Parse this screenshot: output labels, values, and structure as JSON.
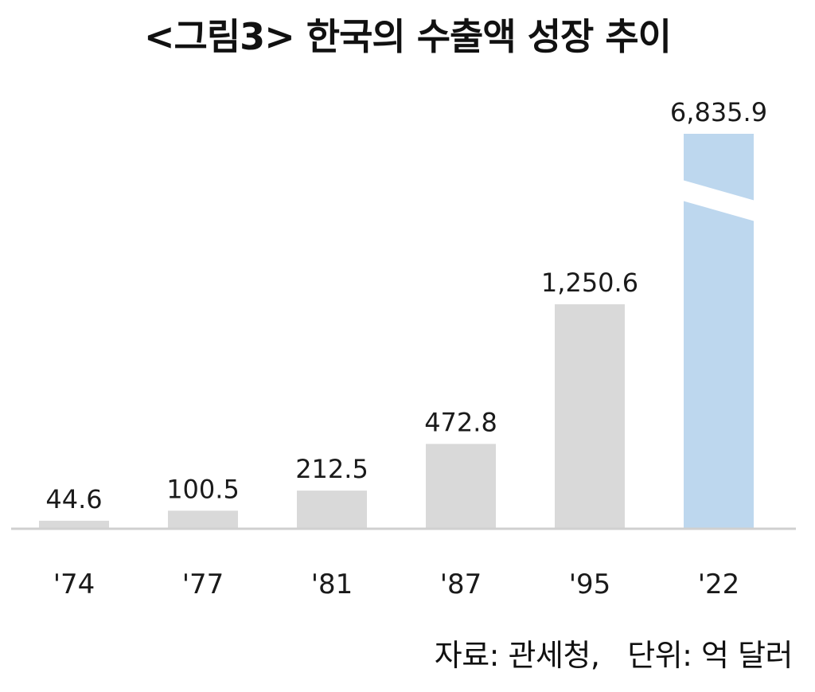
{
  "chart_data": {
    "type": "bar",
    "title": "<그림3> 한국의 수출액 성장 추이",
    "categories": [
      "'74",
      "'77",
      "'81",
      "'87",
      "'95",
      "'22"
    ],
    "values": [
      44.6,
      100.5,
      212.5,
      472.8,
      1250.6,
      6835.9
    ],
    "value_labels": [
      "44.6",
      "100.5",
      "212.5",
      "472.8",
      "1,250.6",
      "6,835.9"
    ],
    "axis_break": {
      "category": "'22",
      "note": "bar truncated with break mark"
    },
    "colors": {
      "bar": "#d9d9d9",
      "highlight_bar": "#bdd7ee",
      "baseline": "#d0d0d0"
    },
    "grid": false,
    "legend": "none",
    "footnote": "자료: 관세청,   단위: 억 달러"
  }
}
